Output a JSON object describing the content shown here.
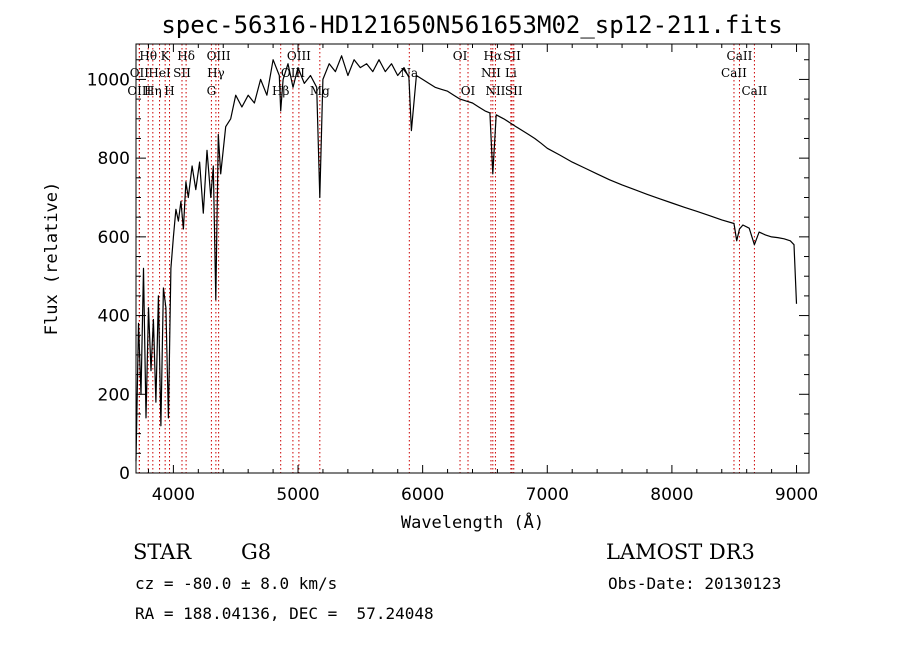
{
  "chart_data": {
    "type": "line",
    "title": "spec-56316-HD121650N561653M02_sp12-211.fits",
    "xlabel": "Wavelength (Å)",
    "ylabel": "Flux (relative)",
    "xlim": [
      3700,
      9100
    ],
    "ylim": [
      0,
      1090
    ],
    "xticks": [
      4000,
      5000,
      6000,
      7000,
      8000,
      9000
    ],
    "yticks": [
      0,
      200,
      400,
      600,
      800,
      1000
    ],
    "grid": false,
    "series": [
      {
        "name": "spectrum",
        "x": [
          3700,
          3720,
          3740,
          3760,
          3780,
          3800,
          3820,
          3840,
          3860,
          3880,
          3900,
          3920,
          3940,
          3960,
          3980,
          4000,
          4020,
          4040,
          4060,
          4080,
          4100,
          4120,
          4150,
          4180,
          4210,
          4240,
          4270,
          4300,
          4320,
          4340,
          4360,
          4380,
          4420,
          4460,
          4500,
          4550,
          4600,
          4650,
          4700,
          4750,
          4800,
          4850,
          4861,
          4880,
          4920,
          4960,
          5000,
          5050,
          5100,
          5150,
          5175,
          5200,
          5250,
          5300,
          5350,
          5400,
          5450,
          5500,
          5550,
          5600,
          5650,
          5700,
          5750,
          5800,
          5850,
          5890,
          5910,
          5950,
          6000,
          6050,
          6100,
          6150,
          6200,
          6250,
          6300,
          6350,
          6400,
          6450,
          6500,
          6540,
          6563,
          6590,
          6620,
          6650,
          6700,
          6750,
          6800,
          6850,
          6900,
          6950,
          7000,
          7100,
          7200,
          7300,
          7400,
          7500,
          7600,
          7700,
          7800,
          7900,
          8000,
          8100,
          8200,
          8300,
          8400,
          8498,
          8520,
          8542,
          8570,
          8620,
          8662,
          8700,
          8750,
          8800,
          8850,
          8900,
          8950,
          8980,
          9000
        ],
        "values": [
          30,
          380,
          200,
          520,
          140,
          420,
          260,
          390,
          180,
          450,
          120,
          470,
          420,
          140,
          520,
          600,
          670,
          640,
          690,
          620,
          740,
          700,
          780,
          720,
          790,
          660,
          820,
          700,
          780,
          440,
          860,
          760,
          880,
          900,
          960,
          930,
          960,
          940,
          1000,
          960,
          1050,
          1010,
          920,
          1000,
          1040,
          980,
          1030,
          990,
          1010,
          980,
          700,
          1000,
          1040,
          1020,
          1060,
          1010,
          1050,
          1030,
          1040,
          1020,
          1050,
          1020,
          1040,
          1010,
          1030,
          1005,
          870,
          1010,
          1000,
          990,
          980,
          975,
          970,
          960,
          950,
          945,
          940,
          930,
          920,
          915,
          760,
          910,
          905,
          900,
          890,
          880,
          870,
          860,
          850,
          838,
          825,
          808,
          790,
          775,
          760,
          745,
          732,
          720,
          708,
          697,
          686,
          675,
          665,
          654,
          643,
          634,
          590,
          620,
          630,
          622,
          580,
          612,
          605,
          600,
          598,
          595,
          590,
          580,
          430
        ]
      }
    ],
    "line_markers": [
      {
        "label": "Hθ",
        "x": 3798,
        "row": 1
      },
      {
        "label": "OII",
        "x": 3727,
        "row": 2
      },
      {
        "label": "OIII",
        "x": 3727,
        "row": 3
      },
      {
        "label": "K",
        "x": 3934,
        "row": 1
      },
      {
        "label": "HeI",
        "x": 3889,
        "row": 2
      },
      {
        "label": "Hη",
        "x": 3835,
        "row": 3
      },
      {
        "label": "H",
        "x": 3969,
        "row": 3
      },
      {
        "label": "SII",
        "x": 4069,
        "row": 2
      },
      {
        "label": "Hδ",
        "x": 4102,
        "row": 1
      },
      {
        "label": "OIII",
        "x": 4363,
        "row": 1
      },
      {
        "label": "Hγ",
        "x": 4341,
        "row": 2
      },
      {
        "label": "G",
        "x": 4305,
        "row": 3
      },
      {
        "label": "OIII",
        "x": 5007,
        "row": 1
      },
      {
        "label": "OIII",
        "x": 4959,
        "row": 2
      },
      {
        "label": "Hβ",
        "x": 4861,
        "row": 3
      },
      {
        "label": "Mg",
        "x": 5175,
        "row": 3
      },
      {
        "label": "Na",
        "x": 5893,
        "row": 2
      },
      {
        "label": "OI",
        "x": 6300,
        "row": 1
      },
      {
        "label": "OI",
        "x": 6364,
        "row": 3
      },
      {
        "label": "Hα",
        "x": 6563,
        "row": 1
      },
      {
        "label": "NII",
        "x": 6548,
        "row": 2
      },
      {
        "label": "NII",
        "x": 6584,
        "row": 3
      },
      {
        "label": "SII",
        "x": 6717,
        "row": 1
      },
      {
        "label": "Li",
        "x": 6708,
        "row": 2
      },
      {
        "label": "SII",
        "x": 6731,
        "row": 3
      },
      {
        "label": "CaII",
        "x": 8542,
        "row": 1
      },
      {
        "label": "CaII",
        "x": 8498,
        "row": 2
      },
      {
        "label": "CaII",
        "x": 8662,
        "row": 3
      }
    ]
  },
  "info": {
    "object_type": "STAR",
    "subclass": "G8",
    "survey": "LAMOST DR3",
    "redshift": "cz = -80.0 ± 8.0 km/s",
    "obs_date": "Obs-Date: 20130123",
    "coords": "RA = 188.04136, DEC =  57.24048"
  }
}
